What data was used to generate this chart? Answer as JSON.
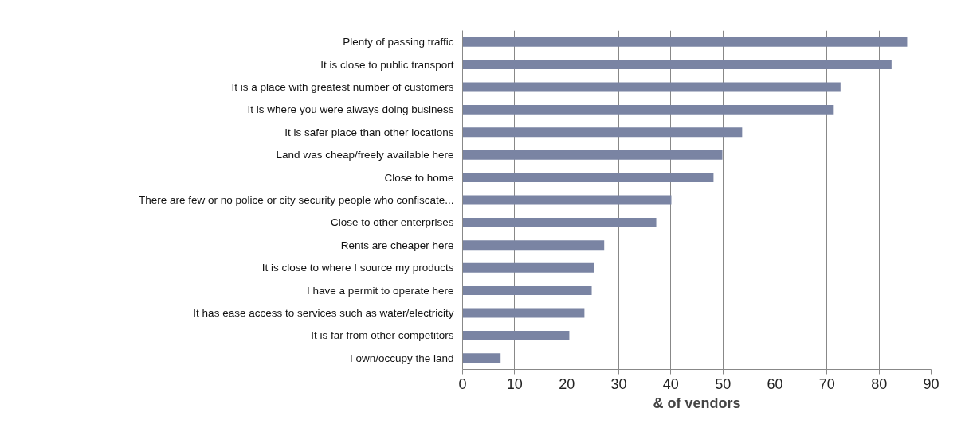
{
  "chart_data": {
    "type": "bar",
    "orientation": "horizontal",
    "xlabel": "& of vendors",
    "categories": [
      "Plenty of passing traffic",
      "It is close to public transport",
      "It is a place with greatest number of customers",
      "It is where you were always doing business",
      "It is safer place than other locations",
      "Land was cheap/freely available here",
      "Close to home",
      "There are few or no police or city security people who confiscate...",
      "Close to other enterprises",
      "Rents are cheaper here",
      "It is close to where I source my products",
      "I have a permit to operate here",
      "It has ease access to services such as water/electricity",
      "It is far from other competitors",
      "I own/occupy the land"
    ],
    "values": [
      85.4,
      82.4,
      72.6,
      71.3,
      53.7,
      49.9,
      48.2,
      40.1,
      37.2,
      27.2,
      25.2,
      24.8,
      23.4,
      20.5,
      7.3
    ],
    "color": "#7a84a3",
    "xlim": [
      0,
      90
    ],
    "xticks": [
      0,
      10,
      20,
      30,
      40,
      50,
      60,
      70,
      80,
      90
    ],
    "grid": "x"
  }
}
